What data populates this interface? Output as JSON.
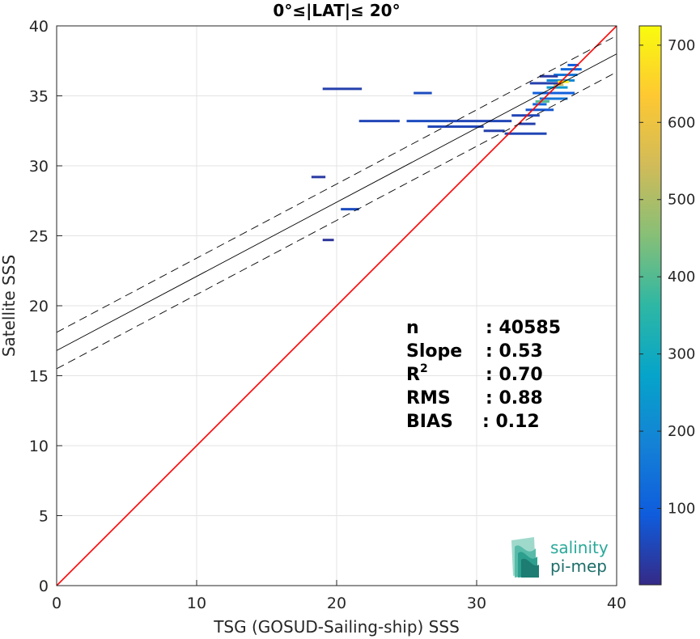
{
  "chart_data": {
    "type": "heatmap",
    "title": "0°≤|LAT|≤ 20°",
    "xlabel": "TSG (GOSUD-Sailing-ship) SSS",
    "ylabel": "Satellite SSS",
    "xlim": [
      0,
      40
    ],
    "ylim": [
      0,
      40
    ],
    "xticks": [
      "0",
      "10",
      "20",
      "30",
      "40"
    ],
    "yticks": [
      "0",
      "5",
      "10",
      "15",
      "20",
      "25",
      "30",
      "35",
      "40"
    ],
    "grid": true,
    "lines": [
      {
        "name": "one-to-one",
        "color": "#ff0000",
        "style": "solid",
        "x": [
          0,
          40
        ],
        "y": [
          0,
          40
        ]
      },
      {
        "name": "regression fit",
        "color": "#000000",
        "style": "solid",
        "x": [
          0,
          40
        ],
        "y": [
          16.8,
          38.0
        ]
      },
      {
        "name": "upper bound",
        "color": "#000000",
        "style": "dashed",
        "x": [
          0,
          40
        ],
        "y": [
          18.1,
          39.3
        ]
      },
      {
        "name": "lower bound",
        "color": "#000000",
        "style": "dashed",
        "x": [
          0,
          40
        ],
        "y": [
          15.5,
          36.7
        ]
      }
    ],
    "density_cells": [
      {
        "x0": 19.0,
        "x1": 21.8,
        "y": 35.5,
        "count": 40
      },
      {
        "x0": 25.5,
        "x1": 26.8,
        "y": 35.2,
        "count": 60
      },
      {
        "x0": 18.2,
        "x1": 19.2,
        "y": 29.2,
        "count": 30
      },
      {
        "x0": 20.3,
        "x1": 21.6,
        "y": 26.9,
        "count": 60
      },
      {
        "x0": 19.0,
        "x1": 19.8,
        "y": 24.7,
        "count": 20
      },
      {
        "x0": 21.6,
        "x1": 24.5,
        "y": 33.2,
        "count": 50
      },
      {
        "x0": 25.0,
        "x1": 28.0,
        "y": 33.2,
        "count": 60
      },
      {
        "x0": 26.5,
        "x1": 30.5,
        "y": 32.8,
        "count": 50
      },
      {
        "x0": 28.0,
        "x1": 32.5,
        "y": 33.2,
        "count": 50
      },
      {
        "x0": 30.5,
        "x1": 32.0,
        "y": 32.5,
        "count": 40
      },
      {
        "x0": 32.0,
        "x1": 35.0,
        "y": 32.3,
        "count": 50
      },
      {
        "x0": 32.5,
        "x1": 34.5,
        "y": 33.6,
        "count": 50
      },
      {
        "x0": 33.5,
        "x1": 35.5,
        "y": 34.0,
        "count": 80
      },
      {
        "x0": 34.0,
        "x1": 35.0,
        "y": 34.4,
        "count": 120
      },
      {
        "x0": 34.5,
        "x1": 36.5,
        "y": 34.8,
        "count": 150
      },
      {
        "x0": 34.0,
        "x1": 37.0,
        "y": 35.2,
        "count": 100
      },
      {
        "x0": 35.0,
        "x1": 36.5,
        "y": 35.6,
        "count": 250
      },
      {
        "x0": 35.5,
        "x1": 36.2,
        "y": 35.8,
        "count": 550
      },
      {
        "x0": 35.0,
        "x1": 37.0,
        "y": 36.1,
        "count": 200
      },
      {
        "x0": 35.5,
        "x1": 37.2,
        "y": 36.5,
        "count": 150
      },
      {
        "x0": 36.0,
        "x1": 37.5,
        "y": 36.9,
        "count": 120
      },
      {
        "x0": 33.8,
        "x1": 36.0,
        "y": 35.9,
        "count": 40
      },
      {
        "x0": 34.5,
        "x1": 35.8,
        "y": 36.4,
        "count": 30
      },
      {
        "x0": 36.5,
        "x1": 37.3,
        "y": 37.2,
        "count": 90
      },
      {
        "x0": 34.2,
        "x1": 35.2,
        "y": 34.6,
        "count": 400
      },
      {
        "x0": 33.0,
        "x1": 34.2,
        "y": 33.0,
        "count": 40
      },
      {
        "x0": 35.8,
        "x1": 36.6,
        "y": 36.0,
        "count": 700
      }
    ],
    "colorbar": {
      "colormap": "parula",
      "range": [
        1,
        725
      ],
      "ticks": [
        "100",
        "200",
        "300",
        "400",
        "500",
        "600",
        "700"
      ]
    },
    "stats": [
      {
        "label": "n",
        "value": ": 40585"
      },
      {
        "label": "Slope",
        "value": ": 0.53"
      },
      {
        "label": "R",
        "sup": "2",
        "value": ": 0.70"
      },
      {
        "label": "RMS",
        "value": ": 0.88"
      },
      {
        "label": "BIAS",
        "value": ": 0.12"
      }
    ]
  },
  "logo": {
    "line1": "salinity",
    "line2": "pi-mep",
    "colors": {
      "teal": "#2aa99a",
      "dark": "#1e6e6a"
    }
  }
}
